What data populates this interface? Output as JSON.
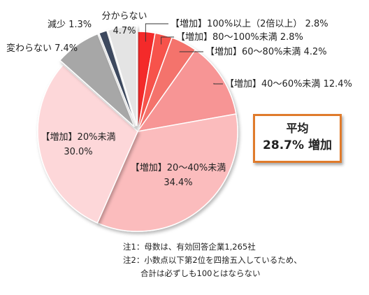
{
  "chart_data": {
    "type": "pie",
    "title": "",
    "categories": [
      "【増加】100%以上（2倍以上）",
      "【増加】80～100%未満",
      "【増加】60～80%未満",
      "【増加】40～60%未満",
      "【増加】20～40%未満",
      "【増加】20%未満",
      "変わらない",
      "減少",
      "分からない"
    ],
    "values": [
      2.8,
      2.8,
      4.2,
      12.4,
      34.4,
      30.0,
      7.4,
      1.3,
      4.7
    ],
    "value_labels": [
      "2.8%",
      "2.8%",
      "4.2%",
      "12.4%",
      "34.4%",
      "30.0%",
      "7.4%",
      "1.3%",
      "4.7%"
    ],
    "colors": [
      "#f42a2a",
      "#f7524c",
      "#f4736c",
      "#f79595",
      "#fbbcbd",
      "#fdd7d9",
      "#a7a7a7",
      "#3c4a5e",
      "#e4e4e4"
    ],
    "start": "12 o'clock",
    "direction": "clockwise",
    "legend": "none"
  },
  "average_box": {
    "title": "平均",
    "value": "28.7% 増加",
    "border_color": "#e07b2b"
  },
  "notes": [
    "注1：母数は、有効回答企業1,265社",
    "注2：小数点以下第2位を四捨五入しているため、",
    "合計は必ずしも100とはならない"
  ]
}
